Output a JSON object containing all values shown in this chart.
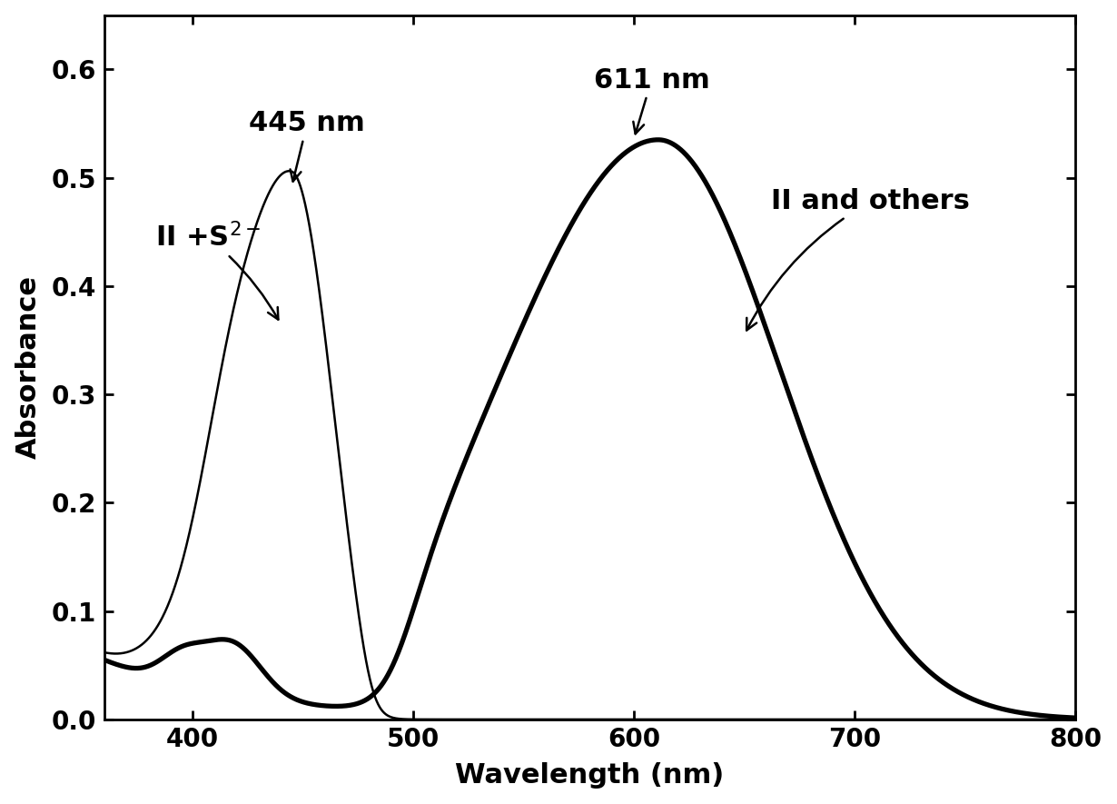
{
  "xlabel": "Wavelength (nm)",
  "ylabel": "Absorbance",
  "xlim": [
    360,
    800
  ],
  "ylim": [
    0.0,
    0.65
  ],
  "yticks": [
    0.0,
    0.1,
    0.2,
    0.3,
    0.4,
    0.5,
    0.6
  ],
  "xticks": [
    400,
    500,
    600,
    700,
    800
  ],
  "thin_lw": 1.8,
  "thick_lw": 3.8,
  "color": "#000000",
  "bg_color": "#ffffff",
  "xlabel_fontsize": 22,
  "ylabel_fontsize": 22,
  "tick_fontsize": 20,
  "annot_fontsize": 22,
  "label_fontsize": 22
}
